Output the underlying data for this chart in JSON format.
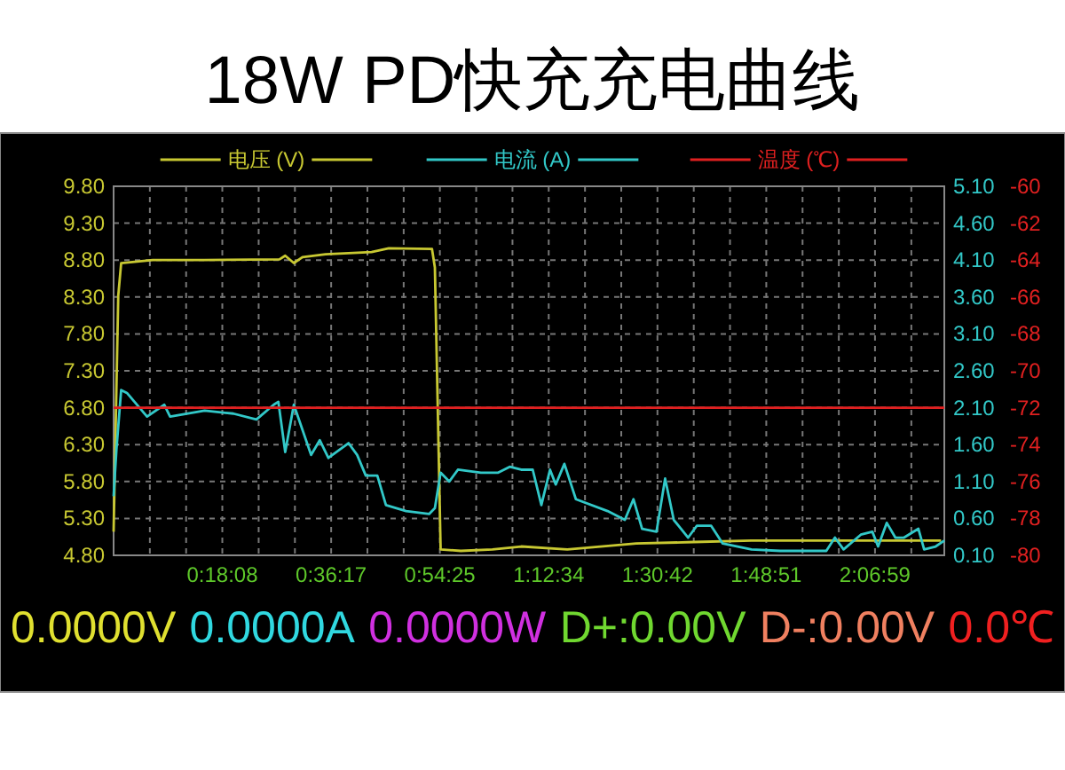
{
  "chart_data": {
    "type": "line",
    "title": "18W PD快充充电曲线",
    "xlim": [
      0,
      2.309
    ],
    "xticks": [
      {
        "value": 0.1008,
        "label": null
      },
      {
        "value": 0.2016,
        "label": null
      },
      {
        "value": 0.30222,
        "label": "0:18:08"
      },
      {
        "value": 0.4032,
        "label": null
      },
      {
        "value": 0.504,
        "label": null
      },
      {
        "value": 0.60472,
        "label": "0:36:17"
      },
      {
        "value": 0.7055,
        "label": null
      },
      {
        "value": 0.8063,
        "label": null
      },
      {
        "value": 0.90694,
        "label": "0:54:25"
      },
      {
        "value": 1.0079,
        "label": null
      },
      {
        "value": 1.1087,
        "label": null
      },
      {
        "value": 1.20944,
        "label": "1:12:34"
      },
      {
        "value": 1.3103,
        "label": null
      },
      {
        "value": 1.4111,
        "label": null
      },
      {
        "value": 1.51167,
        "label": "1:30:42"
      },
      {
        "value": 1.6126,
        "label": null
      },
      {
        "value": 1.7134,
        "label": null
      },
      {
        "value": 1.81417,
        "label": "1:48:51"
      },
      {
        "value": 1.915,
        "label": null
      },
      {
        "value": 2.0158,
        "label": null
      },
      {
        "value": 2.11639,
        "label": "2:06:59"
      },
      {
        "value": 2.2174,
        "label": null
      }
    ],
    "ylim": [
      4.8,
      9.8
    ],
    "yticks": [
      {
        "value": 4.8,
        "label": "4.80"
      },
      {
        "value": 5.3,
        "label": "5.30"
      },
      {
        "value": 5.8,
        "label": "5.80"
      },
      {
        "value": 6.3,
        "label": "6.30"
      },
      {
        "value": 6.8,
        "label": "6.80"
      },
      {
        "value": 7.3,
        "label": "7.30"
      },
      {
        "value": 7.8,
        "label": "7.80"
      },
      {
        "value": 8.3,
        "label": "8.30"
      },
      {
        "value": 8.8,
        "label": "8.80"
      },
      {
        "value": 9.3,
        "label": "9.30"
      },
      {
        "value": 9.8,
        "label": "9.80"
      }
    ],
    "y2lim": [
      0.1,
      5.1
    ],
    "y2ticks": [
      {
        "value": 0.1,
        "label": "0.10"
      },
      {
        "value": 0.6,
        "label": "0.60"
      },
      {
        "value": 1.1,
        "label": "1.10"
      },
      {
        "value": 1.6,
        "label": "1.60"
      },
      {
        "value": 2.1,
        "label": "2.10"
      },
      {
        "value": 2.6,
        "label": "2.60"
      },
      {
        "value": 3.1,
        "label": "3.10"
      },
      {
        "value": 3.6,
        "label": "3.60"
      },
      {
        "value": 4.1,
        "label": "4.10"
      },
      {
        "value": 4.6,
        "label": "4.60"
      },
      {
        "value": 5.1,
        "label": "5.10"
      }
    ],
    "y3lim": [
      -80,
      -60
    ],
    "y3ticks": [
      -80,
      -78,
      -76,
      -74,
      -72,
      -70,
      -68,
      -66,
      -64,
      -62,
      -60
    ],
    "grid": true,
    "legend": "top",
    "series": [
      {
        "name": "电压 (V)",
        "color": "#c8c832",
        "axis": "y",
        "x": [
          0,
          0.013,
          0.021,
          0.109,
          0.253,
          0.461,
          0.477,
          0.501,
          0.525,
          0.589,
          0.717,
          0.765,
          0.885,
          0.893,
          0.909,
          0.965,
          1.053,
          1.133,
          1.261,
          1.453,
          1.613,
          1.773,
          2.3
        ],
        "values": [
          5.12,
          8.32,
          8.76,
          8.8,
          8.8,
          8.81,
          8.86,
          8.76,
          8.84,
          8.88,
          8.91,
          8.96,
          8.95,
          8.7,
          4.88,
          4.86,
          4.88,
          4.92,
          4.88,
          4.96,
          4.98,
          5.0,
          5.0
        ]
      },
      {
        "name": "电流 (A)",
        "color": "#32c8c8",
        "axis": "y2",
        "x": [
          0,
          0.008,
          0.021,
          0.037,
          0.093,
          0.141,
          0.157,
          0.253,
          0.333,
          0.397,
          0.445,
          0.458,
          0.477,
          0.501,
          0.549,
          0.573,
          0.597,
          0.653,
          0.677,
          0.701,
          0.733,
          0.757,
          0.813,
          0.877,
          0.893,
          0.909,
          0.933,
          0.957,
          1.021,
          1.069,
          1.101,
          1.133,
          1.165,
          1.189,
          1.213,
          1.229,
          1.253,
          1.285,
          1.373,
          1.421,
          1.445,
          1.469,
          1.509,
          1.533,
          1.557,
          1.597,
          1.621,
          1.661,
          1.693,
          1.773,
          1.853,
          1.981,
          2.005,
          2.029,
          2.077,
          2.109,
          2.125,
          2.149,
          2.173,
          2.197,
          2.237,
          2.253,
          2.285,
          2.309
        ],
        "values": [
          0.9,
          1.54,
          2.34,
          2.3,
          1.98,
          2.14,
          1.98,
          2.06,
          2.02,
          1.94,
          2.14,
          2.18,
          1.5,
          2.14,
          1.46,
          1.66,
          1.42,
          1.62,
          1.46,
          1.18,
          1.18,
          0.78,
          0.7,
          0.66,
          0.74,
          1.22,
          1.1,
          1.26,
          1.22,
          1.22,
          1.3,
          1.26,
          1.26,
          0.78,
          1.26,
          1.06,
          1.34,
          0.86,
          0.7,
          0.58,
          0.86,
          0.46,
          0.42,
          1.14,
          0.58,
          0.34,
          0.5,
          0.5,
          0.26,
          0.18,
          0.16,
          0.16,
          0.34,
          0.18,
          0.38,
          0.42,
          0.22,
          0.54,
          0.34,
          0.34,
          0.46,
          0.18,
          0.22,
          0.3
        ]
      },
      {
        "name": "温度 (℃)",
        "color": "#e02020",
        "axis": "y3",
        "x": [
          0,
          2.309
        ],
        "values": [
          -72,
          -72
        ]
      }
    ],
    "annotations": [
      "0.0000V",
      "0.0000A",
      "0.0000W",
      "D+:0.00V",
      "D-:0.00V",
      "0.0℃"
    ]
  }
}
